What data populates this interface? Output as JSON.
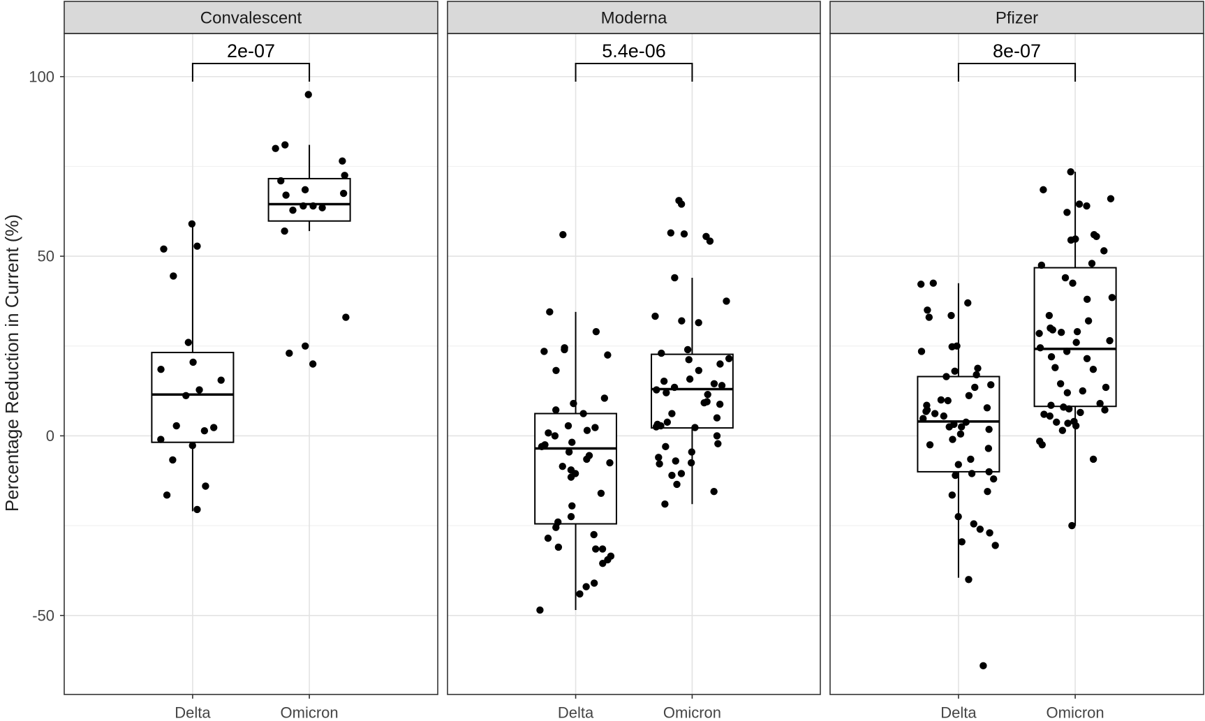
{
  "chart_data": {
    "type": "box",
    "ylabel": "Percentage Reduction in Current (%)",
    "xlabel": "",
    "ylim": [
      -72,
      112
    ],
    "yticks": [
      -50,
      0,
      50,
      100
    ],
    "categories": [
      "Delta",
      "Omicron"
    ],
    "grid": true,
    "panels": [
      {
        "name": "Convalescent",
        "p_value": "2e-07",
        "groups": [
          {
            "category": "Delta",
            "q1": -1.8,
            "median": 11.5,
            "q3": 23.2,
            "whisker_low": -21,
            "whisker_high": 59,
            "points": [
              59,
              52.8,
              52,
              44.5,
              26,
              20.5,
              18.5,
              15.5,
              12.8,
              11.2,
              2.8,
              2.3,
              1.4,
              -1,
              -2.7,
              -6.7,
              -14,
              -16.5,
              -20.5
            ]
          },
          {
            "category": "Omicron",
            "q1": 59.8,
            "median": 64.5,
            "q3": 71.6,
            "whisker_low": 57,
            "whisker_high": 81,
            "points": [
              95,
              81,
              80,
              76.5,
              72.5,
              71,
              68.5,
              67.5,
              67,
              64,
              64,
              63.5,
              62.8,
              57,
              33,
              25,
              23,
              20
            ]
          }
        ]
      },
      {
        "name": "Moderna",
        "p_value": "5.4e-06",
        "groups": [
          {
            "category": "Delta",
            "q1": -24.5,
            "median": -3.5,
            "q3": 6.2,
            "whisker_low": -48.5,
            "whisker_high": 34.5,
            "points": [
              56,
              34.5,
              29,
              24.5,
              24,
              23.5,
              22.5,
              18.2,
              10.5,
              9,
              7.2,
              6.2,
              2.8,
              2.3,
              1.5,
              0.8,
              0,
              -1.8,
              -2.5,
              -3,
              -4.5,
              -5.5,
              -6.5,
              -7.5,
              -8.5,
              -9.5,
              -10.5,
              -11.5,
              -16,
              -19.5,
              -22.5,
              -24,
              -25.5,
              -27.5,
              -28.5,
              -31,
              -31.5,
              -31.5,
              -33.5,
              -34.5,
              -35.5,
              -41,
              -42,
              -44,
              -48.5
            ]
          },
          {
            "category": "Omicron",
            "q1": 2.2,
            "median": 13,
            "q3": 22.7,
            "whisker_low": -19,
            "whisker_high": 44,
            "points": [
              65.5,
              64.5,
              56.5,
              56.2,
              55.5,
              54.2,
              44,
              37.5,
              33.3,
              32,
              31.5,
              24,
              23,
              21.5,
              21.2,
              20,
              18.2,
              15.8,
              15.2,
              14.5,
              14,
              13.5,
              12.8,
              12,
              11.5,
              9.5,
              9.2,
              8.8,
              6.2,
              5,
              3.8,
              3.2,
              2.8,
              2.5,
              2.3,
              0,
              -2.2,
              -3,
              -4.5,
              -6,
              -7,
              -7.5,
              -7.8,
              -10.5,
              -11,
              -13.5,
              -15.5,
              -19
            ]
          }
        ]
      },
      {
        "name": "Pfizer",
        "p_value": "8e-07",
        "groups": [
          {
            "category": "Delta",
            "q1": -10,
            "median": 4,
            "q3": 16.5,
            "whisker_low": -39.5,
            "whisker_high": 42.5,
            "points": [
              42.5,
              42.2,
              37,
              35,
              33.5,
              33,
              25,
              24.8,
              23.5,
              18.8,
              18,
              17,
              16.5,
              14.2,
              13.5,
              11.2,
              10,
              9.8,
              8.5,
              7.8,
              7.2,
              6.8,
              6.2,
              5.5,
              4.8,
              3.8,
              3.2,
              2.5,
              2.5,
              1.8,
              0.5,
              -1,
              -2.5,
              -3.5,
              -6.5,
              -8,
              -10,
              -10.5,
              -11,
              -12,
              -15.5,
              -16.5,
              -22.5,
              -24.5,
              -26,
              -27,
              -29.5,
              -30.5,
              -40,
              -64
            ]
          },
          {
            "category": "Omicron",
            "q1": 8.2,
            "median": 24.2,
            "q3": 46.8,
            "whisker_low": -25,
            "whisker_high": 73.5,
            "points": [
              73.5,
              68.5,
              66,
              64.5,
              64,
              62.2,
              56,
              55.5,
              54.8,
              54.5,
              51.5,
              48,
              47.5,
              44,
              42.5,
              38.5,
              38,
              33.5,
              32,
              30,
              29.5,
              29,
              28.8,
              28.5,
              26.5,
              26,
              24.5,
              23.5,
              22,
              21.5,
              19,
              18.5,
              14.5,
              13.5,
              12.5,
              12,
              9,
              8.5,
              8,
              7.5,
              7.2,
              6.5,
              6,
              5.5,
              4,
              3.8,
              3.5,
              2.8,
              1.5,
              -1.5,
              -2.5,
              -6.5,
              -25
            ]
          }
        ]
      }
    ]
  }
}
